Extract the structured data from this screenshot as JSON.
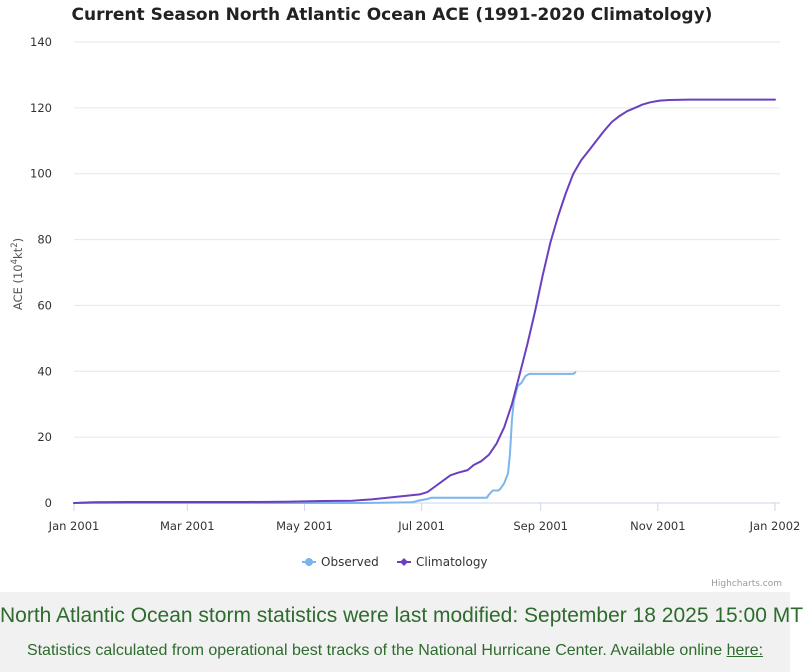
{
  "colors": {
    "observed": "#7cb5ec",
    "climatology": "#6a3fc0",
    "grid": "#e6e6e6",
    "footer_text": "#2e6b2e",
    "footer_bg": "#f1f1f1"
  },
  "chart_data": {
    "type": "line",
    "title": "Current Season North Atlantic Ocean ACE (1991-2020 Climatology)",
    "xlabel": "",
    "ylabel": "ACE (10⁴kt²)",
    "ylabel_parts": {
      "prefix": "ACE (10",
      "sup1": "4",
      "mid": "kt",
      "sup2": "2",
      "suffix": ")"
    },
    "xlim_days": [
      0,
      365
    ],
    "ylim": [
      0,
      140
    ],
    "yticks": [
      0,
      20,
      40,
      60,
      80,
      100,
      120,
      140
    ],
    "xticks": [
      {
        "day": 0,
        "label": "Jan 2001"
      },
      {
        "day": 59,
        "label": "Mar 2001"
      },
      {
        "day": 120,
        "label": "May 2001"
      },
      {
        "day": 181,
        "label": "Jul 2001"
      },
      {
        "day": 243,
        "label": "Sep 2001"
      },
      {
        "day": 304,
        "label": "Nov 2001"
      },
      {
        "day": 365,
        "label": "Jan 2002"
      }
    ],
    "grid": "horizontal",
    "legend_position": "bottom-center",
    "series": [
      {
        "name": "Observed",
        "color": "#7cb5ec",
        "marker": "circle",
        "points": [
          [
            0,
            0
          ],
          [
            150,
            0
          ],
          [
            176,
            0.2
          ],
          [
            180,
            0.8
          ],
          [
            184,
            1.2
          ],
          [
            186,
            1.6
          ],
          [
            200,
            1.6
          ],
          [
            215,
            1.6
          ],
          [
            216,
            2.5
          ],
          [
            218,
            3.8
          ],
          [
            221,
            3.8
          ],
          [
            222,
            4.3
          ],
          [
            224,
            6
          ],
          [
            226,
            9
          ],
          [
            227,
            15
          ],
          [
            228,
            25
          ],
          [
            229,
            31
          ],
          [
            231,
            35.5
          ],
          [
            233,
            36.5
          ],
          [
            235,
            38.5
          ],
          [
            237,
            39.2
          ],
          [
            260,
            39.2
          ],
          [
            261,
            39.7
          ]
        ]
      },
      {
        "name": "Climatology",
        "color": "#6a3fc0",
        "marker": "diamond",
        "points": [
          [
            0,
            0
          ],
          [
            10,
            0.2
          ],
          [
            30,
            0.3
          ],
          [
            60,
            0.3
          ],
          [
            90,
            0.3
          ],
          [
            110,
            0.4
          ],
          [
            130,
            0.6
          ],
          [
            145,
            0.7
          ],
          [
            150,
            0.9
          ],
          [
            155,
            1.1
          ],
          [
            160,
            1.4
          ],
          [
            165,
            1.7
          ],
          [
            170,
            2.0
          ],
          [
            175,
            2.3
          ],
          [
            180,
            2.6
          ],
          [
            184,
            3.3
          ],
          [
            188,
            5
          ],
          [
            192,
            6.7
          ],
          [
            196,
            8.4
          ],
          [
            200,
            9.2
          ],
          [
            205,
            10
          ],
          [
            208,
            11.5
          ],
          [
            212,
            12.7
          ],
          [
            216,
            14.6
          ],
          [
            220,
            18
          ],
          [
            224,
            23
          ],
          [
            228,
            30
          ],
          [
            232,
            39
          ],
          [
            236,
            48
          ],
          [
            240,
            58
          ],
          [
            244,
            69
          ],
          [
            248,
            79
          ],
          [
            252,
            87
          ],
          [
            256,
            94
          ],
          [
            260,
            100
          ],
          [
            264,
            104
          ],
          [
            268,
            107
          ],
          [
            272,
            110
          ],
          [
            276,
            113
          ],
          [
            280,
            115.7
          ],
          [
            284,
            117.5
          ],
          [
            288,
            119
          ],
          [
            292,
            120
          ],
          [
            296,
            121
          ],
          [
            300,
            121.7
          ],
          [
            305,
            122.2
          ],
          [
            310,
            122.4
          ],
          [
            320,
            122.5
          ],
          [
            365,
            122.5
          ]
        ]
      }
    ],
    "credits": "Highcharts.com"
  },
  "footer": {
    "headline": "North Atlantic Ocean storm statistics were last modified: September 18 2025 15:00 MT",
    "subtext": "Statistics calculated from operational best tracks of the National Hurricane Center. Available online",
    "link_text": "here:"
  }
}
